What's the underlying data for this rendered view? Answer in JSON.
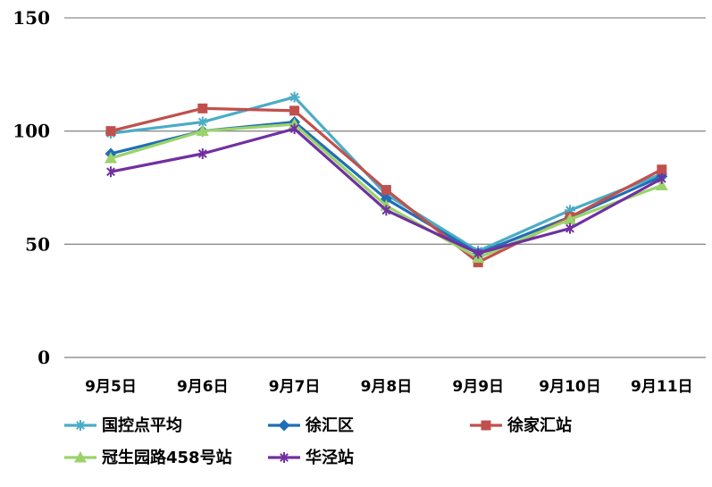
{
  "chart_data": {
    "type": "line",
    "categories": [
      "9月5日",
      "9月6日",
      "9月7日",
      "9月8日",
      "9月9日",
      "9月10日",
      "9月11日"
    ],
    "ylim": [
      0,
      150
    ],
    "yticks": [
      0,
      50,
      100,
      150
    ],
    "grid": true,
    "legend_position": "bottom",
    "series": [
      {
        "name": "国控点平均",
        "color": "#4BACC6",
        "marker": "star",
        "values": [
          99,
          104,
          115,
          72,
          47,
          65,
          81
        ]
      },
      {
        "name": "徐汇区",
        "color": "#1F6EB5",
        "marker": "diamond",
        "values": [
          90,
          100,
          104,
          70,
          46,
          62,
          80
        ]
      },
      {
        "name": "徐家汇站",
        "color": "#C0504D",
        "marker": "square",
        "values": [
          100,
          110,
          109,
          74,
          42,
          62,
          83
        ]
      },
      {
        "name": "冠生园路458号站",
        "color": "#9BD36A",
        "marker": "triangle",
        "values": [
          88,
          100,
          103,
          67,
          44,
          61,
          76
        ]
      },
      {
        "name": "华泾站",
        "color": "#7030A0",
        "marker": "asterisk",
        "values": [
          82,
          90,
          101,
          65,
          46,
          57,
          79
        ]
      }
    ]
  }
}
